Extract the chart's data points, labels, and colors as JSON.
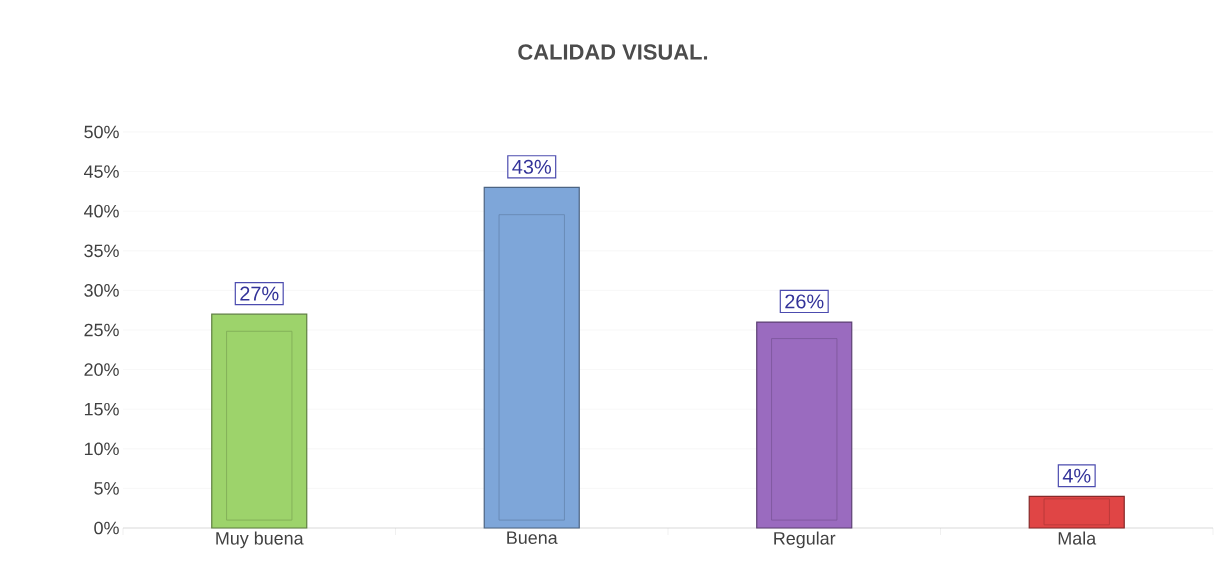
{
  "chart_data": {
    "type": "bar",
    "title": "CALIDAD VISUAL.",
    "categories": [
      "Muy buena",
      "Buena",
      "Regular",
      "Mala"
    ],
    "values": [
      27,
      43,
      26,
      4
    ],
    "value_labels": [
      "27%",
      "43%",
      "26%",
      "4%"
    ],
    "colors": [
      "#9dd36b",
      "#7ea6d9",
      "#9a6bbf",
      "#e04545"
    ],
    "ylim": [
      0,
      50
    ],
    "yticks": [
      {
        "value": 0,
        "label": "0%"
      },
      {
        "value": 5,
        "label": "5%"
      },
      {
        "value": 10,
        "label": "10%"
      },
      {
        "value": 15,
        "label": "15%"
      },
      {
        "value": 20,
        "label": "20%"
      },
      {
        "value": 25,
        "label": "25%"
      },
      {
        "value": 30,
        "label": "30%"
      },
      {
        "value": 35,
        "label": "35%"
      },
      {
        "value": 40,
        "label": "40%"
      },
      {
        "value": 45,
        "label": "45%"
      },
      {
        "value": 50,
        "label": "50%"
      }
    ],
    "grid": "y"
  }
}
